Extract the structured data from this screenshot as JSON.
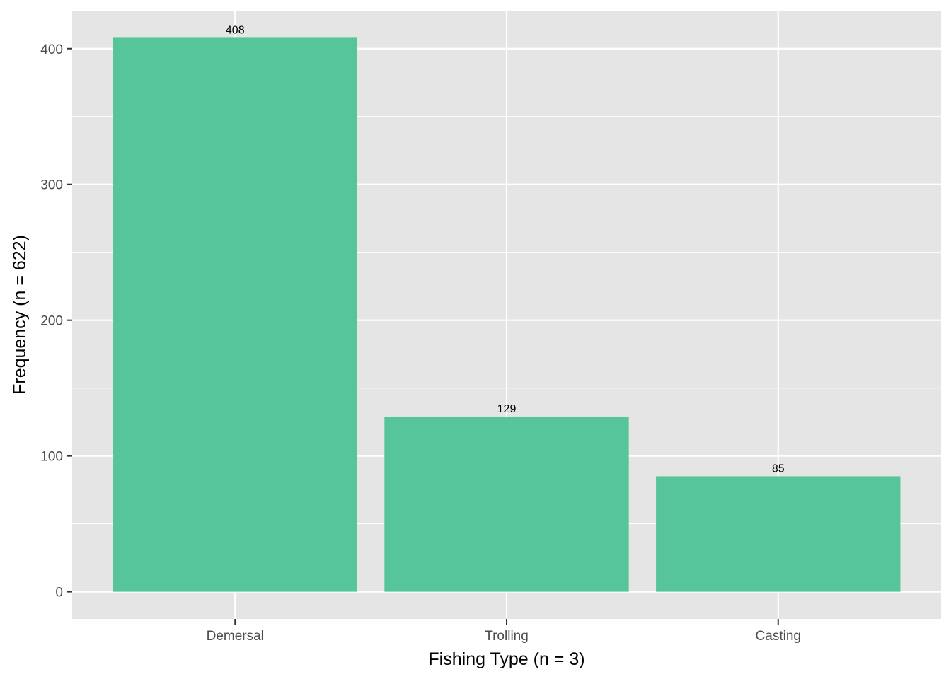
{
  "chart_data": {
    "type": "bar",
    "categories": [
      "Demersal",
      "Trolling",
      "Casting"
    ],
    "values": [
      408,
      129,
      85
    ],
    "data_labels": [
      "408",
      "129",
      "85"
    ],
    "title": "",
    "xlabel": "Fishing Type (n = 3)",
    "ylabel": "Frequency (n = 622)",
    "ylim": [
      -20,
      428
    ],
    "yticks": [
      0,
      100,
      200,
      300,
      400
    ],
    "ytick_labels": [
      "0",
      "100",
      "200",
      "300",
      "400"
    ],
    "grid": true,
    "legend": "none",
    "colors": {
      "bar": "#57c59a",
      "panel": "#e5e5e5",
      "grid": "#ffffff",
      "tick_text": "#4d4d4d",
      "axis_ticks": "#333333"
    }
  }
}
